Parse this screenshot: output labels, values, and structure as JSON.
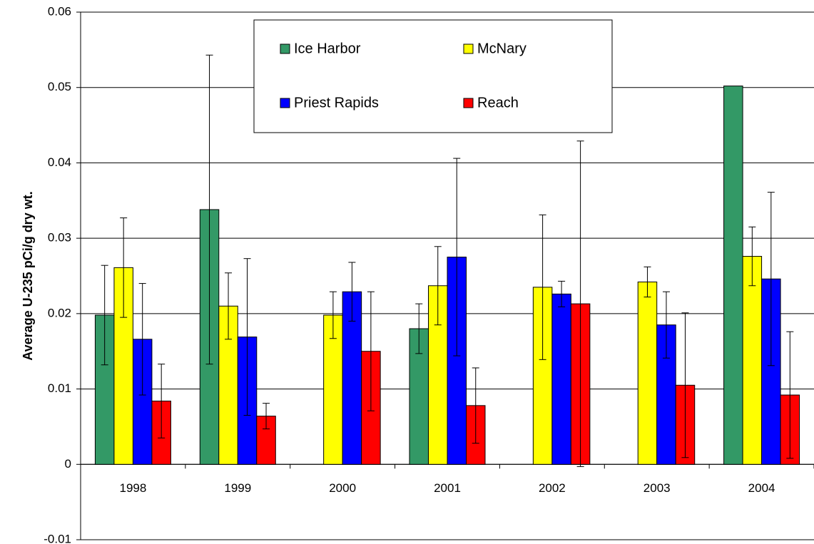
{
  "chart_data": {
    "type": "bar",
    "y_label": "Average U-235 pCi/g dry wt.",
    "categories": [
      "1998",
      "1999",
      "2000",
      "2001",
      "2002",
      "2003",
      "2004"
    ],
    "series": [
      {
        "name": "Ice Harbor",
        "color": "#339966",
        "values": [
          0.0198,
          0.0338,
          null,
          0.018,
          null,
          null,
          0.0502
        ],
        "errors": [
          0.0066,
          0.0205,
          null,
          0.0033,
          null,
          null,
          null
        ]
      },
      {
        "name": "McNary",
        "color": "#ffff00",
        "values": [
          0.0261,
          0.021,
          0.0198,
          0.0237,
          0.0235,
          0.0242,
          0.0276
        ],
        "errors": [
          0.0066,
          0.0044,
          0.0031,
          0.0052,
          0.0096,
          0.002,
          0.0039
        ]
      },
      {
        "name": "Priest Rapids",
        "color": "#0000ff",
        "values": [
          0.0166,
          0.0169,
          0.0229,
          0.0275,
          0.0226,
          0.0185,
          0.0246
        ],
        "errors": [
          0.0074,
          0.0104,
          0.0039,
          0.0131,
          0.0017,
          0.0044,
          0.0115
        ]
      },
      {
        "name": "Reach",
        "color": "#ff0000",
        "values": [
          0.0084,
          0.0064,
          0.015,
          0.0078,
          0.0213,
          0.0105,
          0.0092
        ],
        "errors": [
          0.0049,
          0.0017,
          0.0079,
          0.005,
          0.0216,
          0.0096,
          0.0084
        ]
      }
    ],
    "ylim": [
      -0.01,
      0.06
    ],
    "yticks": [
      -0.01,
      0,
      0.01,
      0.02,
      0.03,
      0.04,
      0.05,
      0.06
    ],
    "grid": true,
    "legend": "top"
  }
}
